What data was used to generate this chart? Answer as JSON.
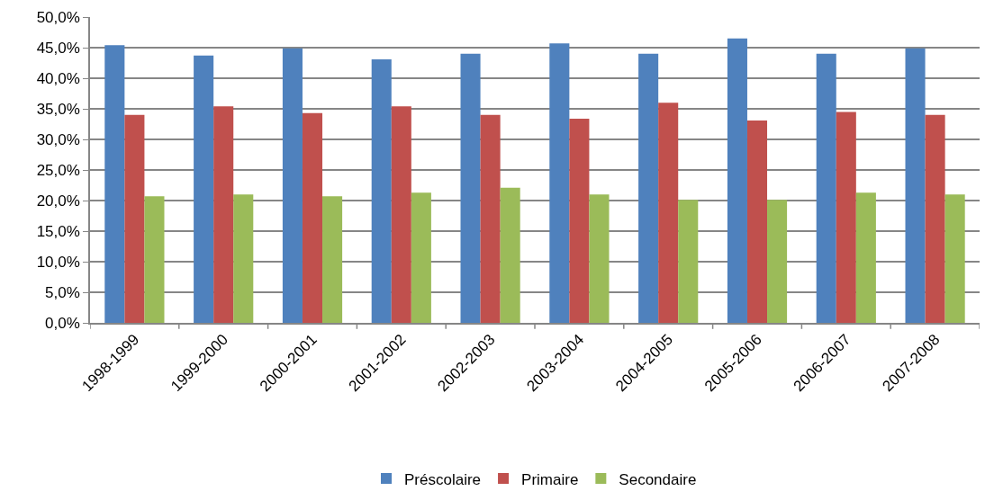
{
  "chart_data": {
    "type": "bar",
    "categories": [
      "1998-1999",
      "1999-2000",
      "2000-2001",
      "2001-2002",
      "2002-2003",
      "2003-2004",
      "2004-2005",
      "2005-2006",
      "2006-2007",
      "2007-2008"
    ],
    "series": [
      {
        "name": "Préscolaire",
        "color": "#4f81bd",
        "values": [
          45.4,
          43.7,
          44.9,
          43.1,
          44.0,
          45.7,
          44.0,
          46.5,
          44.0,
          44.9
        ]
      },
      {
        "name": "Primaire",
        "color": "#c0504d",
        "values": [
          34.0,
          35.4,
          34.3,
          35.4,
          34.0,
          33.4,
          36.0,
          33.1,
          34.5,
          34.0
        ]
      },
      {
        "name": "Secondaire",
        "color": "#9bbb59",
        "values": [
          20.7,
          21.0,
          20.7,
          21.3,
          22.1,
          21.0,
          20.1,
          20.1,
          21.3,
          21.0
        ]
      }
    ],
    "ylim": [
      0,
      50
    ],
    "yticks": [
      {
        "value": 0,
        "label": "0,0%"
      },
      {
        "value": 5,
        "label": "5,0%"
      },
      {
        "value": 10,
        "label": "10,0%"
      },
      {
        "value": 15,
        "label": "15,0%"
      },
      {
        "value": 20,
        "label": "20,0%"
      },
      {
        "value": 25,
        "label": "25,0%"
      },
      {
        "value": 30,
        "label": "30,0%"
      },
      {
        "value": 35,
        "label": "35,0%"
      },
      {
        "value": 40,
        "label": "40,0%"
      },
      {
        "value": 45,
        "label": "45,0%"
      },
      {
        "value": 50,
        "label": "50,0%"
      }
    ],
    "grid": "y",
    "legend": "bottom"
  }
}
